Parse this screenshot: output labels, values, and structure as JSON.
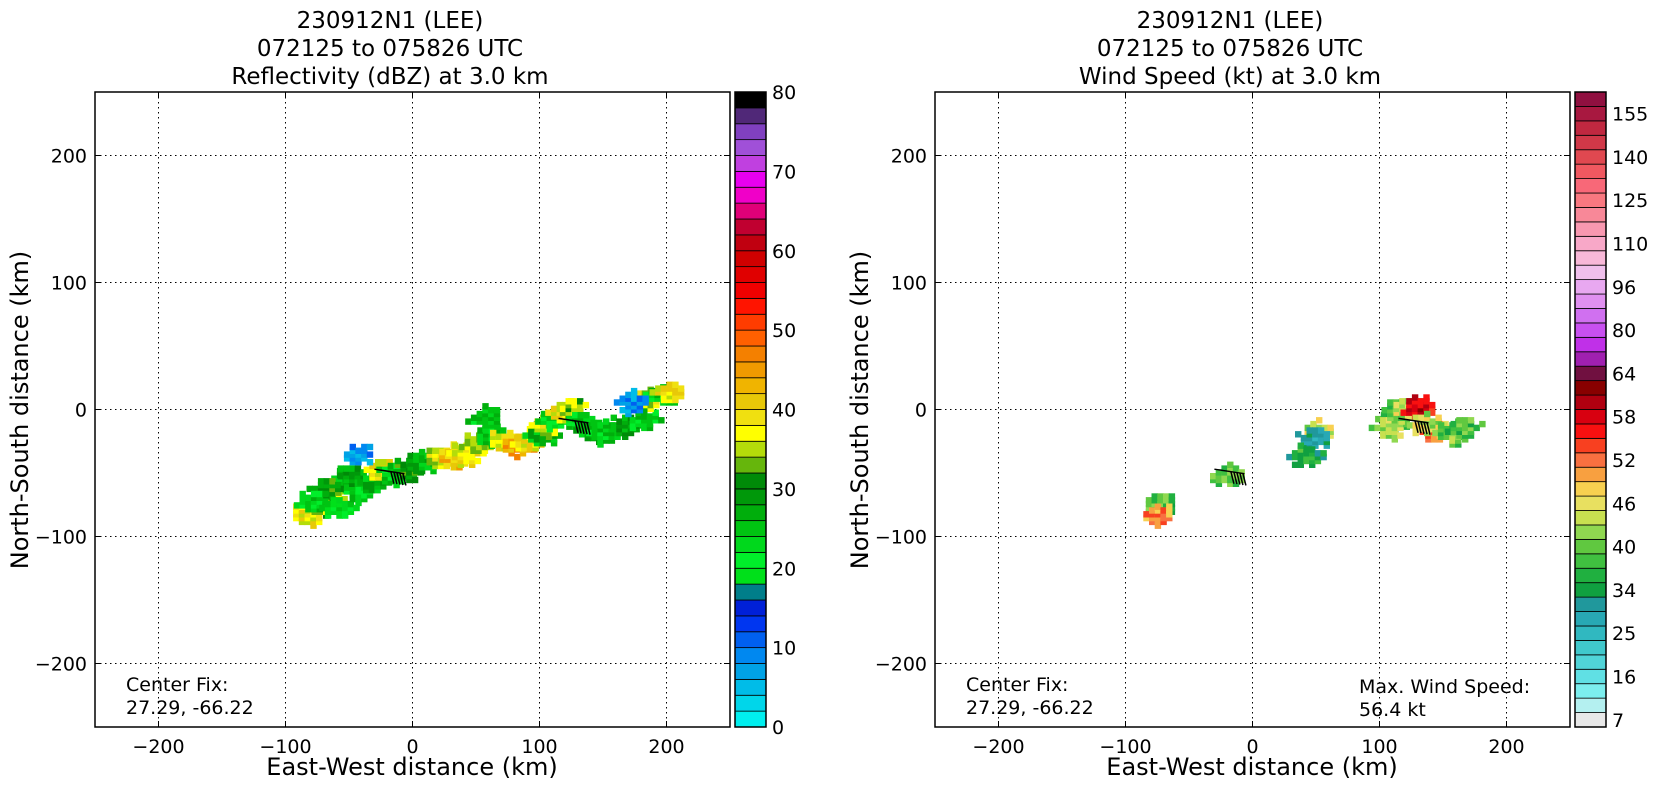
{
  "chart_data": [
    {
      "type": "heatmap",
      "title_lines": [
        "230912N1 (LEE)",
        "072125 to 075826 UTC",
        "Reflectivity (dBZ) at 3.0 km"
      ],
      "xlabel": "East-West distance (km)",
      "ylabel": "North-South distance (km)",
      "xlim": [
        -250,
        250
      ],
      "ylim": [
        -250,
        250
      ],
      "xticks": [
        -200,
        -100,
        0,
        100,
        200
      ],
      "yticks": [
        200,
        100,
        0,
        -100,
        -200
      ],
      "xtick_labels": [
        "−200",
        "−100",
        "0",
        "100",
        "200"
      ],
      "ytick_labels": [
        "200",
        "100",
        "0",
        "−100",
        "−200"
      ],
      "grid": true,
      "center_fix_label": "Center Fix:",
      "center_fix_value": "27.29, -66.22",
      "colorbar": {
        "min": 0,
        "max": 80,
        "ticks": [
          0,
          10,
          20,
          30,
          40,
          50,
          60,
          70,
          80
        ],
        "colors": [
          "#00efef",
          "#00d6ea",
          "#00bce8",
          "#00a2e6",
          "#0088f0",
          "#0060f0",
          "#0036f0",
          "#0020d8",
          "#007e8a",
          "#00e01a",
          "#00ee2a",
          "#00d81c",
          "#00c412",
          "#00ae0c",
          "#00980a",
          "#008a08",
          "#66b60c",
          "#b4dc0a",
          "#ffff00",
          "#f0e010",
          "#e8c808",
          "#f0b400",
          "#f09a00",
          "#f48000",
          "#ff6000",
          "#ff3c00",
          "#ff1400",
          "#f00000",
          "#e00000",
          "#d00000",
          "#c00010",
          "#c00030",
          "#e00078",
          "#f000c8",
          "#e800f0",
          "#c040e0",
          "#a050d8",
          "#8040c0",
          "#502878",
          "#000000"
        ]
      },
      "data_regions": [
        {
          "x": -85,
          "y": -80,
          "value": 38
        },
        {
          "x": -75,
          "y": -72,
          "value": 34
        },
        {
          "x": -65,
          "y": -65,
          "value": 38
        },
        {
          "x": -55,
          "y": -55,
          "value": 26
        },
        {
          "x": -70,
          "y": -60,
          "value": 30
        },
        {
          "x": -80,
          "y": -70,
          "value": 24
        },
        {
          "x": -60,
          "y": -75,
          "value": 22
        },
        {
          "x": -45,
          "y": -62,
          "value": 24
        },
        {
          "x": -50,
          "y": -50,
          "value": 28
        },
        {
          "x": -30,
          "y": -55,
          "value": 26
        },
        {
          "x": -25,
          "y": -45,
          "value": 38
        },
        {
          "x": -15,
          "y": -48,
          "value": 24
        },
        {
          "x": -5,
          "y": -44,
          "value": 30
        },
        {
          "x": 5,
          "y": -40,
          "value": 26
        },
        {
          "x": 20,
          "y": -36,
          "value": 36
        },
        {
          "x": 30,
          "y": -34,
          "value": 42
        },
        {
          "x": 40,
          "y": -32,
          "value": 38
        },
        {
          "x": 50,
          "y": -24,
          "value": 36
        },
        {
          "x": 60,
          "y": -20,
          "value": 24
        },
        {
          "x": 70,
          "y": -22,
          "value": 38
        },
        {
          "x": 80,
          "y": -26,
          "value": 44
        },
        {
          "x": 90,
          "y": -22,
          "value": 38
        },
        {
          "x": 100,
          "y": -18,
          "value": 26
        },
        {
          "x": 105,
          "y": -10,
          "value": 36
        },
        {
          "x": 110,
          "y": -4,
          "value": 24
        },
        {
          "x": 118,
          "y": 0,
          "value": 38
        },
        {
          "x": 125,
          "y": 3,
          "value": 34
        },
        {
          "x": 130,
          "y": -8,
          "value": 24
        },
        {
          "x": 140,
          "y": -14,
          "value": 26
        },
        {
          "x": 150,
          "y": -16,
          "value": 24
        },
        {
          "x": 165,
          "y": -10,
          "value": 28
        },
        {
          "x": 180,
          "y": -6,
          "value": 24
        },
        {
          "x": 185,
          "y": 12,
          "value": 36
        },
        {
          "x": 195,
          "y": 14,
          "value": 24
        },
        {
          "x": 200,
          "y": 16,
          "value": 38
        },
        {
          "x": 172,
          "y": 8,
          "value": 8
        },
        {
          "x": -45,
          "y": -33,
          "value": 8
        },
        {
          "x": 55,
          "y": -4,
          "value": 24
        }
      ],
      "barbs": [
        {
          "x": -30,
          "y": -47,
          "u": 1,
          "v": 0.15
        },
        {
          "x": 115,
          "y": -7,
          "u": 1,
          "v": 0.15
        }
      ]
    },
    {
      "type": "heatmap",
      "title_lines": [
        "230912N1 (LEE)",
        "072125 to 075826 UTC",
        "Wind Speed (kt) at 3.0 km"
      ],
      "xlabel": "East-West distance (km)",
      "ylabel": "North-South distance (km)",
      "xlim": [
        -250,
        250
      ],
      "ylim": [
        -250,
        250
      ],
      "xticks": [
        -200,
        -100,
        0,
        100,
        200
      ],
      "yticks": [
        200,
        100,
        0,
        -100,
        -200
      ],
      "xtick_labels": [
        "−200",
        "−100",
        "0",
        "100",
        "200"
      ],
      "ytick_labels": [
        "200",
        "100",
        "0",
        "−100",
        "−200"
      ],
      "grid": true,
      "center_fix_label": "Center Fix:",
      "center_fix_value": "27.29, -66.22",
      "max_wind_label": "Max. Wind Speed:",
      "max_wind_value": "56.4 kt",
      "colorbar": {
        "tick_labels": [
          "7",
          "16",
          "25",
          "34",
          "40",
          "46",
          "52",
          "58",
          "64",
          "80",
          "96",
          "110",
          "125",
          "140",
          "155"
        ],
        "tick_segment_index": [
          0,
          3,
          6,
          9,
          12,
          15,
          18,
          21,
          24,
          27,
          30,
          33,
          36,
          39,
          42
        ],
        "colors": [
          "#e8e8e8",
          "#b4f0f0",
          "#7ceeee",
          "#60e0e4",
          "#50d4d8",
          "#40c8cc",
          "#30b8c0",
          "#28a8b4",
          "#20989c",
          "#10a040",
          "#20b040",
          "#40c040",
          "#60c840",
          "#90d850",
          "#c8e050",
          "#e8e060",
          "#f8d050",
          "#f8a040",
          "#f87040",
          "#f84020",
          "#f81010",
          "#d80010",
          "#b00010",
          "#880000",
          "#701040",
          "#a020b0",
          "#c030e8",
          "#c850f0",
          "#d070f0",
          "#e090f0",
          "#e8a8f0",
          "#f0c0ec",
          "#f8b8d8",
          "#f8a8c8",
          "#f898b0",
          "#f88898",
          "#f87880",
          "#f86878",
          "#f05860",
          "#e04850",
          "#d03848",
          "#c02840",
          "#a81840",
          "#901040"
        ]
      },
      "data_regions": [
        {
          "x": 110,
          "y": -5,
          "value": 38
        },
        {
          "x": 105,
          "y": -12,
          "value": 42
        },
        {
          "x": 115,
          "y": 2,
          "value": 40
        },
        {
          "x": 120,
          "y": 3,
          "value": 44
        },
        {
          "x": 130,
          "y": 3,
          "value": 58
        },
        {
          "x": 145,
          "y": -15,
          "value": 50
        },
        {
          "x": 135,
          "y": -10,
          "value": 44
        },
        {
          "x": 155,
          "y": -16,
          "value": 40
        },
        {
          "x": 165,
          "y": -12,
          "value": 38
        },
        {
          "x": 50,
          "y": -15,
          "value": 44
        },
        {
          "x": 47,
          "y": -20,
          "value": 30
        },
        {
          "x": 40,
          "y": -35,
          "value": 36
        },
        {
          "x": -20,
          "y": -50,
          "value": 40
        },
        {
          "x": -75,
          "y": -72,
          "value": 38
        },
        {
          "x": -77,
          "y": -80,
          "value": 50
        }
      ],
      "barbs": [
        {
          "x": -30,
          "y": -47,
          "u": 1,
          "v": 0.15
        },
        {
          "x": 115,
          "y": -7,
          "u": 1,
          "v": 0.15
        }
      ]
    }
  ]
}
